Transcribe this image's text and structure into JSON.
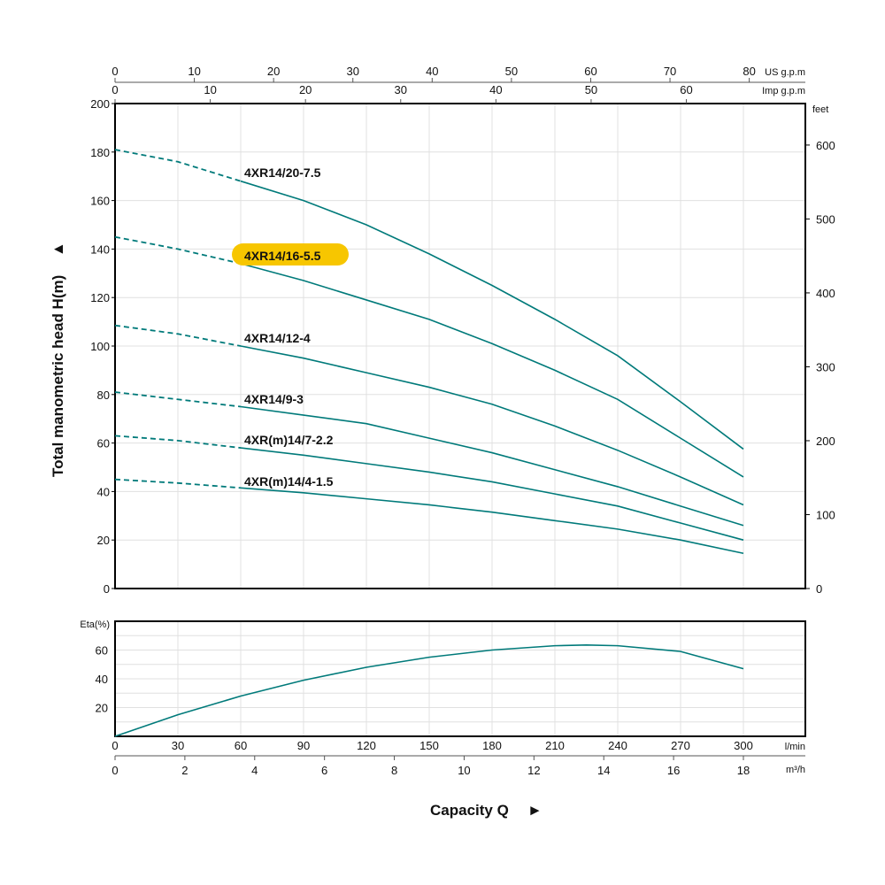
{
  "chart_data": [
    {
      "type": "line",
      "title": "",
      "ylabel": "Total manometric head H(m)",
      "ylabel_arrow": "▲",
      "xlabel": "Capacity Q",
      "xlabel_arrow": "►",
      "ylim": [
        0,
        200
      ],
      "xlim_lmin": [
        0,
        330
      ],
      "y_ticks": [
        0,
        20,
        40,
        60,
        80,
        100,
        120,
        140,
        160,
        180,
        200
      ],
      "y2_label": "feet",
      "y2_ticks": [
        0,
        100,
        200,
        300,
        400,
        500,
        600
      ],
      "top_axis_us": {
        "unit": "US g.p.m",
        "ticks": [
          0,
          10,
          20,
          30,
          40,
          50,
          60,
          70,
          80
        ]
      },
      "top_axis_imp": {
        "unit": "Imp g.p.m",
        "ticks": [
          0,
          10,
          20,
          30,
          40,
          50,
          60
        ]
      },
      "grid": true,
      "dashed_until_lmin": 60,
      "x": [
        0,
        30,
        60,
        90,
        120,
        150,
        180,
        210,
        240,
        270,
        300
      ],
      "series": [
        {
          "name": "4XR14/20-7.5",
          "highlighted": false,
          "values": [
            181,
            176,
            168,
            160,
            150,
            138,
            125,
            111,
            96,
            77,
            57.5
          ]
        },
        {
          "name": "4XR14/16-5.5",
          "highlighted": true,
          "values": [
            145,
            140,
            134,
            127,
            119,
            111,
            101,
            90,
            78,
            62,
            46
          ]
        },
        {
          "name": "4XR14/12-4",
          "highlighted": false,
          "values": [
            108.5,
            105,
            100,
            95,
            89,
            83,
            76,
            67,
            57,
            46,
            34.5
          ]
        },
        {
          "name": "4XR14/9-3",
          "highlighted": false,
          "values": [
            81,
            78,
            75,
            71.5,
            68,
            62,
            56,
            49,
            42,
            34,
            26
          ]
        },
        {
          "name": "4XR(m)14/7-2.2",
          "highlighted": false,
          "values": [
            63,
            61,
            58,
            55,
            51.5,
            48,
            44,
            39,
            34,
            27,
            20
          ]
        },
        {
          "name": "4XR(m)14/4-1.5",
          "highlighted": false,
          "values": [
            45,
            43.5,
            41.5,
            39.5,
            37,
            34.5,
            31.5,
            28,
            24.5,
            20,
            14.5
          ]
        }
      ],
      "highlight_color": "#f7c600",
      "line_color": "#007a7a"
    },
    {
      "type": "line",
      "ylabel": "Eta(%)",
      "ylim": [
        0,
        80
      ],
      "y_ticks": [
        20,
        40,
        60
      ],
      "x_axis_lmin": {
        "unit": "l/min",
        "ticks": [
          0,
          30,
          60,
          90,
          120,
          150,
          180,
          210,
          240,
          270,
          300
        ]
      },
      "x_axis_m3h": {
        "unit": "m³/h",
        "ticks": [
          0,
          2,
          4,
          6,
          8,
          10,
          12,
          14,
          16,
          18
        ]
      },
      "x": [
        0,
        30,
        60,
        90,
        120,
        150,
        180,
        210,
        225,
        240,
        270,
        300
      ],
      "series": [
        {
          "name": "Eta",
          "values": [
            0,
            15,
            28,
            39,
            48,
            55,
            60,
            63,
            63.5,
            63,
            59,
            47
          ]
        }
      ]
    }
  ]
}
